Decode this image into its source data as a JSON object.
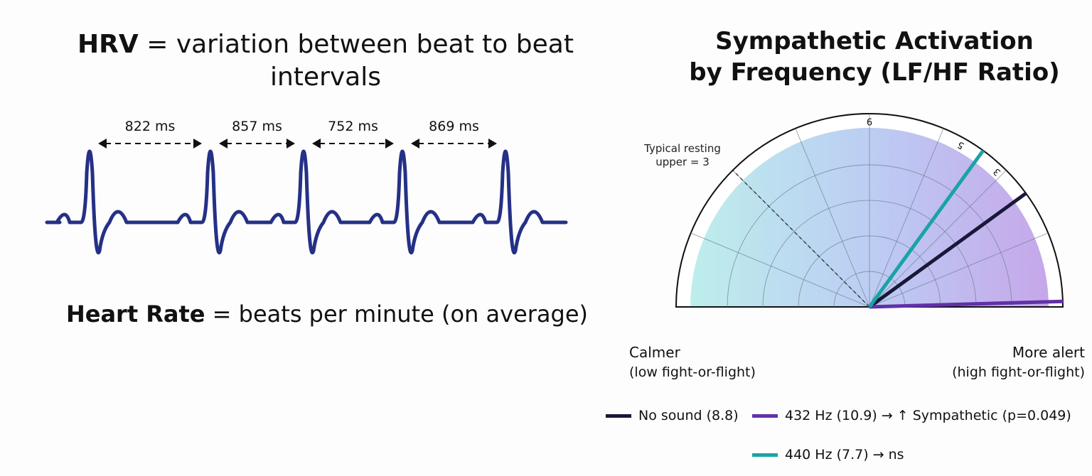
{
  "hrv_definition": {
    "term": "HRV",
    "text": " = variation between beat to beat intervals"
  },
  "hr_definition": {
    "term": "Heart Rate",
    "text": " = beats per minute (on average)"
  },
  "ecg": {
    "line_color": "#253086",
    "intervals": [
      {
        "label": "822 ms"
      },
      {
        "label": "857 ms"
      },
      {
        "label": "752 ms"
      },
      {
        "label": "869 ms"
      }
    ]
  },
  "gauge": {
    "title_line1": "Sympathetic Activation",
    "title_line2": "by Frequency (LF/HF Ratio)",
    "scale_max": 11,
    "tick_labels": [
      {
        "label": "9",
        "value": 5.5
      },
      {
        "label": "5",
        "value": 7.3
      },
      {
        "label": "3",
        "value": 8.15
      }
    ],
    "reference": {
      "label_line1": "Typical resting",
      "label_line2": "upper = 3",
      "value": 2.75
    },
    "left_label": {
      "main": "Calmer",
      "sub": "(low fight-or-flight)"
    },
    "right_label": {
      "main": "More alert",
      "sub": "(high fight-or-flight)"
    },
    "needles": [
      {
        "name": "No sound",
        "label": "No sound (8.8)",
        "value": 8.8,
        "color": "#1a1838"
      },
      {
        "name": "432 Hz",
        "label": "432 Hz (10.9) → ↑ Sympathetic (p=0.049)",
        "value": 10.9,
        "color": "#6131a8"
      },
      {
        "name": "440 Hz",
        "label": "440 Hz (7.7) → ns",
        "value": 7.7,
        "color": "#1aa3a6"
      }
    ]
  }
}
